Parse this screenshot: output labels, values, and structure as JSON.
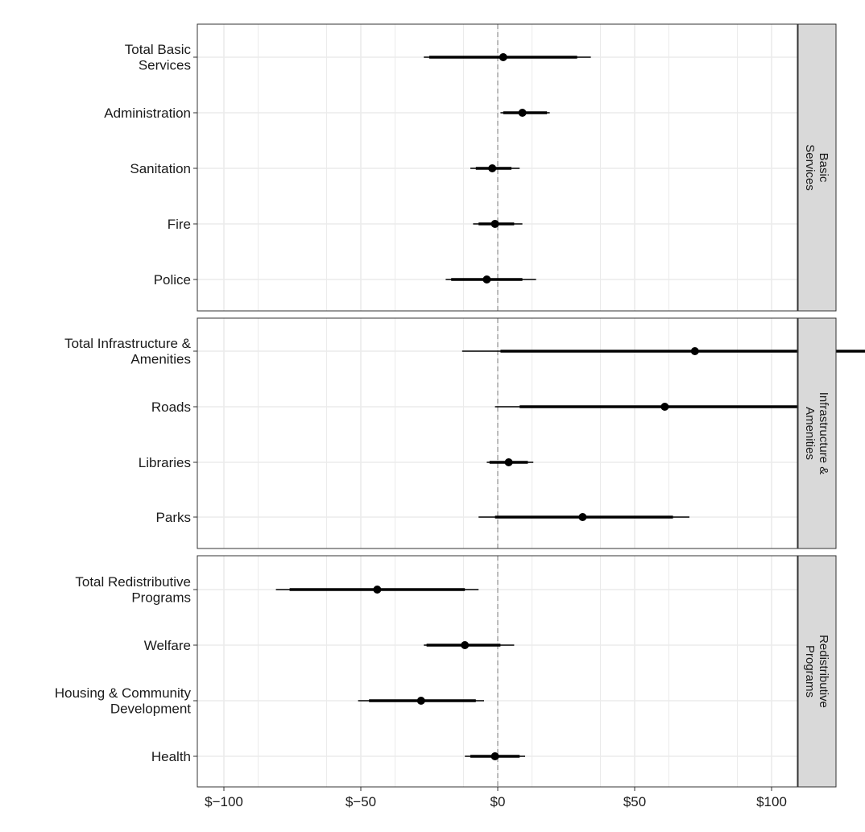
{
  "chart_data": {
    "type": "forest",
    "title": "",
    "xlabel": "",
    "ylabel": "",
    "x_ticks": [
      {
        "value": -100,
        "label": "$−100"
      },
      {
        "value": -50,
        "label": "$−50"
      },
      {
        "value": 0,
        "label": "$0"
      },
      {
        "value": 50,
        "label": "$50"
      },
      {
        "value": 100,
        "label": "$100"
      }
    ],
    "reference_line": 0,
    "grid": true,
    "facet_strip_position": "right",
    "panels": [
      {
        "strip": "Basic\nServices",
        "rows": [
          {
            "label": "Total Basic\nServices",
            "estimate": 2,
            "ci_inner": [
              -25,
              29
            ],
            "ci_outer": [
              -27,
              34
            ]
          },
          {
            "label": "Administration",
            "estimate": 9,
            "ci_inner": [
              2,
              18
            ],
            "ci_outer": [
              1,
              19
            ]
          },
          {
            "label": "Sanitation",
            "estimate": -2,
            "ci_inner": [
              -8,
              5
            ],
            "ci_outer": [
              -10,
              8
            ]
          },
          {
            "label": "Fire",
            "estimate": -1,
            "ci_inner": [
              -7,
              6
            ],
            "ci_outer": [
              -9,
              9
            ]
          },
          {
            "label": "Police",
            "estimate": -4,
            "ci_inner": [
              -17,
              9
            ],
            "ci_outer": [
              -19,
              14
            ]
          }
        ]
      },
      {
        "strip": "Infrastructure &\nAmenities",
        "rows": [
          {
            "label": "Total Infrastructure &\nAmenities",
            "estimate": 72,
            "ci_inner": [
              1,
              142
            ],
            "ci_outer": [
              -13,
              156
            ]
          },
          {
            "label": "Roads",
            "estimate": 61,
            "ci_inner": [
              8,
              114
            ],
            "ci_outer": [
              -1,
              123
            ]
          },
          {
            "label": "Libraries",
            "estimate": 4,
            "ci_inner": [
              -3,
              11
            ],
            "ci_outer": [
              -4,
              13
            ]
          },
          {
            "label": "Parks",
            "estimate": 31,
            "ci_inner": [
              -1,
              64
            ],
            "ci_outer": [
              -7,
              70
            ]
          }
        ]
      },
      {
        "strip": "Redistributive\nPrograms",
        "rows": [
          {
            "label": "Total Redistributive\nPrograms",
            "estimate": -44,
            "ci_inner": [
              -76,
              -12
            ],
            "ci_outer": [
              -81,
              -7
            ]
          },
          {
            "label": "Welfare",
            "estimate": -12,
            "ci_inner": [
              -26,
              1
            ],
            "ci_outer": [
              -27,
              6
            ]
          },
          {
            "label": "Housing & Community\nDevelopment",
            "estimate": -28,
            "ci_inner": [
              -47,
              -8
            ],
            "ci_outer": [
              -51,
              -5
            ]
          },
          {
            "label": "Health",
            "estimate": -1,
            "ci_inner": [
              -10,
              8
            ],
            "ci_outer": [
              -12,
              10
            ]
          }
        ]
      }
    ]
  },
  "colors": {
    "point": "#000000",
    "grid": "#ebebeb",
    "panel_border": "#333333",
    "strip_fill": "#d9d9d9",
    "zero_line": "#aaaaaa"
  }
}
